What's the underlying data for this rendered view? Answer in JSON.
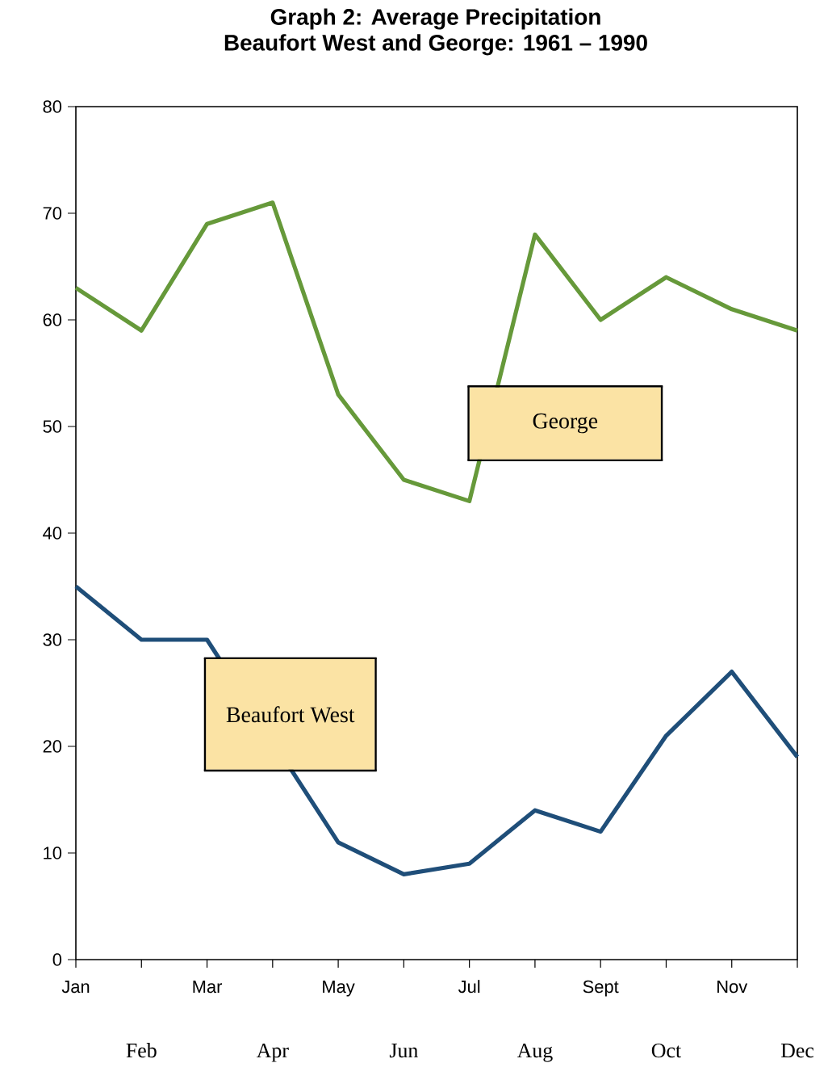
{
  "chart_data": {
    "type": "line",
    "title": "Graph 2: Average Precipitation\nBeaufort West and George: 1961 – 1990",
    "categories": [
      "Jan",
      "Feb",
      "Mar",
      "Apr",
      "May",
      "Jun",
      "Jul",
      "Aug",
      "Sept",
      "Oct",
      "Nov",
      "Dec"
    ],
    "series": [
      {
        "name": "George",
        "color": "#66993a",
        "values": [
          63,
          59,
          69,
          71,
          53,
          45,
          43,
          68,
          60,
          64,
          61,
          59
        ]
      },
      {
        "name": "Beaufort West",
        "color": "#1f4e79",
        "values": [
          35,
          30,
          30,
          null,
          11,
          8,
          9,
          14,
          12,
          21,
          27,
          19
        ]
      }
    ],
    "ylim": [
      0,
      80
    ],
    "yticks": [
      0,
      10,
      20,
      30,
      40,
      50,
      60,
      70,
      80
    ],
    "grid": false,
    "legend": false,
    "marker": "none",
    "line_style": "solid"
  }
}
